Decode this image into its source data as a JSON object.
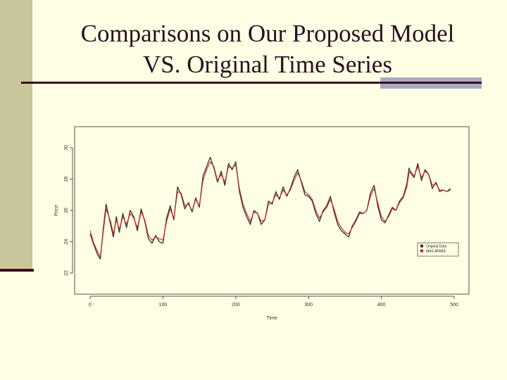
{
  "slide": {
    "title_line1": "Comparisons on Our Proposed Model",
    "title_line2": "VS. Original Time Series"
  },
  "colors": {
    "background": "#ffffe5",
    "left_bar": "#c9c79a",
    "rule": "#3a0a1e",
    "rule_accent": "#a9a9c4",
    "series_original": "#333333",
    "series_model": "#cc2222"
  },
  "chart_data": {
    "type": "line",
    "title": "",
    "xlabel": "Time",
    "ylabel": "Price",
    "xlim": [
      0,
      500
    ],
    "ylim": [
      22,
      30
    ],
    "xticks": [
      0,
      100,
      200,
      300,
      400,
      500
    ],
    "yticks": [
      22,
      24,
      26,
      28,
      30
    ],
    "grid": false,
    "legend_position": "right",
    "x": [
      0,
      5,
      10,
      14,
      18,
      22,
      28,
      32,
      36,
      40,
      45,
      50,
      55,
      60,
      65,
      70,
      75,
      80,
      85,
      90,
      95,
      100,
      105,
      110,
      115,
      120,
      125,
      130,
      135,
      140,
      145,
      150,
      155,
      160,
      165,
      170,
      175,
      180,
      185,
      190,
      195,
      200,
      205,
      210,
      215,
      220,
      225,
      230,
      235,
      240,
      245,
      250,
      255,
      260,
      265,
      270,
      275,
      280,
      285,
      290,
      295,
      300,
      305,
      310,
      315,
      320,
      325,
      330,
      335,
      340,
      345,
      350,
      355,
      360,
      365,
      370,
      375,
      380,
      385,
      390,
      395,
      400,
      405,
      410,
      415,
      420,
      425,
      430,
      435,
      438,
      440,
      445,
      450,
      455,
      460,
      465,
      470,
      475,
      480,
      485,
      490,
      495
    ],
    "series": [
      {
        "name": "Original Data",
        "color": "#333333",
        "values": [
          24.5,
          23.8,
          23.2,
          22.9,
          24.8,
          26.4,
          25.1,
          24.3,
          25.6,
          24.6,
          25.8,
          24.9,
          26.0,
          25.6,
          24.7,
          26.1,
          25.3,
          24.2,
          23.9,
          24.4,
          24.0,
          23.9,
          25.5,
          26.3,
          25.4,
          27.5,
          27.0,
          26.1,
          26.5,
          25.9,
          26.8,
          26.2,
          28.2,
          28.8,
          29.4,
          28.7,
          27.8,
          28.5,
          27.6,
          29.0,
          28.6,
          29.1,
          27.2,
          26.2,
          25.6,
          25.1,
          26.0,
          25.8,
          25.1,
          25.4,
          26.6,
          26.4,
          27.2,
          26.7,
          27.5,
          26.9,
          27.4,
          28.1,
          28.6,
          27.8,
          27.0,
          26.9,
          26.6,
          25.8,
          25.3,
          26.0,
          26.3,
          26.9,
          25.9,
          25.1,
          24.7,
          24.5,
          24.3,
          25.0,
          25.4,
          25.9,
          25.8,
          26.0,
          27.1,
          27.6,
          26.3,
          25.4,
          25.2,
          25.7,
          26.2,
          26.0,
          26.6,
          26.9,
          27.7,
          28.7,
          28.4,
          28.1,
          29.0,
          27.9,
          28.6,
          28.3,
          27.4,
          27.8,
          27.2,
          27.3,
          27.2,
          27.4
        ]
      },
      {
        "name": "MAS ARIMA",
        "color": "#cc2222",
        "values": [
          24.7,
          23.9,
          23.4,
          23.0,
          24.6,
          26.1,
          25.3,
          24.5,
          25.4,
          24.8,
          25.6,
          25.1,
          25.8,
          25.5,
          24.9,
          25.9,
          25.4,
          24.4,
          24.1,
          24.3,
          24.2,
          24.1,
          25.3,
          26.1,
          25.5,
          27.2,
          27.1,
          26.3,
          26.4,
          26.0,
          26.7,
          26.3,
          27.9,
          28.6,
          29.1,
          28.8,
          27.9,
          28.3,
          27.8,
          28.8,
          28.7,
          28.9,
          27.4,
          26.4,
          25.8,
          25.3,
          25.9,
          25.8,
          25.3,
          25.4,
          26.4,
          26.5,
          27.0,
          26.8,
          27.3,
          27.0,
          27.3,
          27.9,
          28.4,
          27.9,
          27.2,
          27.0,
          26.7,
          26.0,
          25.5,
          25.9,
          26.2,
          26.7,
          26.1,
          25.3,
          24.9,
          24.6,
          24.5,
          24.9,
          25.3,
          25.8,
          25.8,
          26.0,
          26.9,
          27.4,
          26.5,
          25.6,
          25.3,
          25.6,
          26.1,
          26.0,
          26.5,
          26.8,
          27.5,
          28.4,
          28.5,
          28.2,
          28.8,
          28.1,
          28.5,
          28.3,
          27.6,
          27.7,
          27.3,
          27.3,
          27.2,
          27.3
        ]
      }
    ]
  }
}
